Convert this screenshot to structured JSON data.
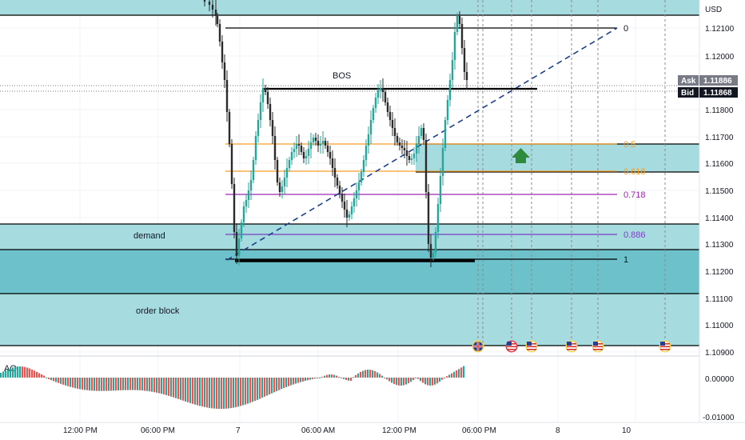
{
  "axis": {
    "currency": "USD",
    "price_ticks": [
      "1.12100",
      "1.12000",
      "1.11800",
      "1.11700",
      "1.11600",
      "1.11500",
      "1.11400",
      "1.11300",
      "1.11200",
      "1.11100",
      "1.11000",
      "1.10900"
    ],
    "ask_label": "Ask",
    "ask_price": "1.11886",
    "bid_label": "Bid",
    "bid_price": "1.11868",
    "time_ticks": [
      "12:00 PM",
      "06:00 PM",
      "7",
      "06:00 AM",
      "12:00 PM",
      "06:00 PM",
      "8",
      "10"
    ],
    "ao_ticks": [
      "0.00000",
      "-0.01000"
    ]
  },
  "annotations": {
    "bos": "BOS",
    "demand": "demand",
    "order_block": "order block",
    "fib_0": "0",
    "fib_0_5": "0.5",
    "fib_0_618": "0.618",
    "fib_0_718": "0.718",
    "fib_0_886": "0.886",
    "fib_1": "1"
  },
  "indicator": {
    "name": "AO"
  },
  "colors": {
    "zone_fill": "#a6dbe0",
    "zone_fill_dark": "#6cc1cb",
    "candle_up": "#26a69a",
    "candle_down": "#3a3a3a",
    "fib_orange": "#f59d27",
    "fib_purple": "#9c27b0",
    "ao_up": "#26a69a",
    "ao_down": "#ef5350",
    "target_arrow": "#2e8b3e",
    "trend_dash": "#1f3f8c"
  },
  "icons": [
    "uk-flag-event-icon",
    "us-flag-event-icon",
    "us-flag-event-icon",
    "us-flag-event-icon",
    "us-flag-event-icon",
    "us-flag-event-icon"
  ]
}
